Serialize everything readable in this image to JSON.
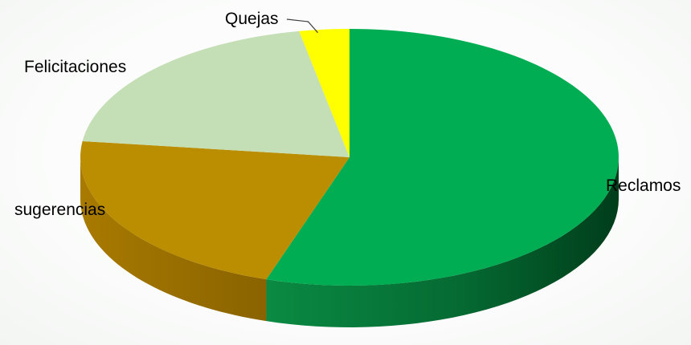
{
  "chart_data": {
    "type": "pie",
    "style": "3d",
    "title": "",
    "categories": [
      "Reclamos",
      "sugerencias",
      "Felicitaciones",
      "Quejas"
    ],
    "values": [
      55,
      22,
      20,
      3
    ],
    "colors": [
      "#00ad52",
      "#bb8d00",
      "#c4deb5",
      "#ffff00"
    ],
    "side_colors": [
      "#006f33",
      "#8a6300",
      "#9fb894",
      "#c9c900"
    ],
    "start_angle_deg": 90,
    "direction": "clockwise",
    "legend": "none"
  }
}
